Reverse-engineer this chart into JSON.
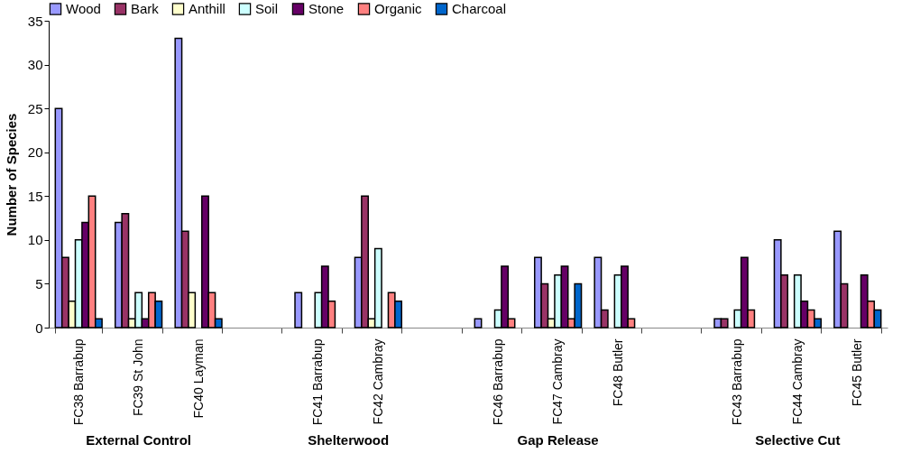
{
  "chart_data": {
    "type": "bar",
    "ylabel": "Number of Species",
    "categories": [
      "FC38 Barrabup",
      "FC39 St John",
      "FC40 Layman",
      null,
      "FC41 Barrabup",
      "FC42 Cambray",
      null,
      "FC46 Barrabup",
      "FC47 Cambray",
      "FC48 Butler",
      null,
      "FC43 Barrabup",
      "FC44 Cambray",
      "FC45 Butler"
    ],
    "series": [
      {
        "name": "Wood",
        "color": "#9999ff",
        "values": [
          25,
          12,
          33,
          null,
          4,
          8,
          null,
          1,
          8,
          8,
          null,
          1,
          10,
          11
        ]
      },
      {
        "name": "Bark",
        "color": "#993366",
        "values": [
          8,
          13,
          11,
          null,
          null,
          15,
          null,
          null,
          5,
          2,
          null,
          1,
          6,
          5
        ]
      },
      {
        "name": "Anthill",
        "color": "#ffffcc",
        "values": [
          3,
          1,
          4,
          null,
          null,
          1,
          null,
          null,
          1,
          null,
          null,
          null,
          null,
          null
        ]
      },
      {
        "name": "Soil",
        "color": "#ccffff",
        "values": [
          10,
          4,
          null,
          null,
          4,
          9,
          null,
          2,
          6,
          6,
          null,
          2,
          6,
          null
        ]
      },
      {
        "name": "Stone",
        "color": "#660066",
        "values": [
          12,
          1,
          15,
          null,
          7,
          null,
          null,
          7,
          7,
          7,
          null,
          8,
          3,
          6
        ]
      },
      {
        "name": "Organic",
        "color": "#ff8080",
        "values": [
          15,
          4,
          4,
          null,
          3,
          4,
          null,
          1,
          1,
          1,
          null,
          2,
          2,
          3
        ]
      },
      {
        "name": "Charcoal",
        "color": "#0066cc",
        "values": [
          1,
          3,
          1,
          null,
          null,
          3,
          null,
          null,
          5,
          null,
          null,
          null,
          1,
          2
        ]
      }
    ],
    "ylim": [
      0,
      35
    ],
    "yticks": [
      0,
      5,
      10,
      15,
      20,
      25,
      30,
      35
    ],
    "legend": "top",
    "annotations": [
      "External Control",
      "Shelterwood",
      "Gap Release",
      "Selective Cut"
    ]
  }
}
